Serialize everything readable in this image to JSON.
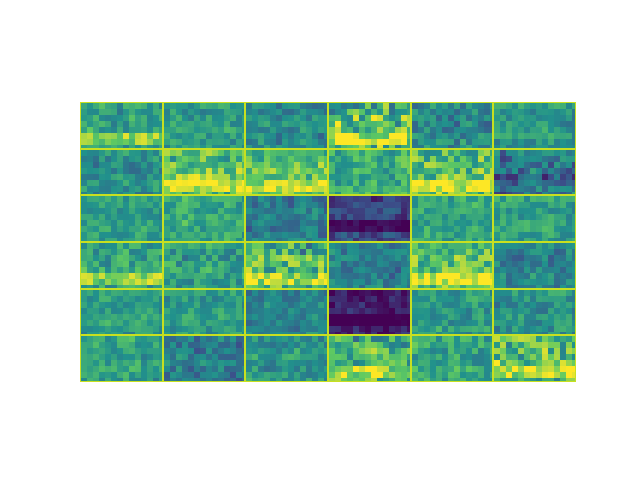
{
  "image": {
    "description_name": "feature-map-grid",
    "rows": 6,
    "cols": 6,
    "colormap": "viridis",
    "colormap_stops": [
      "#440154",
      "#3b528b",
      "#21918c",
      "#5ec962",
      "#fde725"
    ],
    "separator_color": "#c8e020",
    "cells": [
      [
        {
          "base": 0.58,
          "bright": "bottom",
          "contrast": 0.15
        },
        {
          "base": 0.55,
          "bright": "none",
          "contrast": 0.12
        },
        {
          "base": 0.48,
          "bright": "none",
          "contrast": 0.12
        },
        {
          "base": 0.7,
          "bright": "bottom",
          "contrast": 0.3
        },
        {
          "base": 0.45,
          "bright": "none",
          "contrast": 0.15
        },
        {
          "base": 0.52,
          "bright": "none",
          "contrast": 0.12
        }
      ],
      [
        {
          "base": 0.5,
          "bright": "none",
          "contrast": 0.12
        },
        {
          "base": 0.75,
          "bright": "bottom",
          "contrast": 0.2
        },
        {
          "base": 0.72,
          "bright": "bottom",
          "contrast": 0.18
        },
        {
          "base": 0.62,
          "bright": "none",
          "contrast": 0.15
        },
        {
          "base": 0.74,
          "bright": "bottom",
          "contrast": 0.22
        },
        {
          "base": 0.4,
          "bright": "dark",
          "contrast": 0.2
        }
      ],
      [
        {
          "base": 0.55,
          "bright": "none",
          "contrast": 0.1
        },
        {
          "base": 0.6,
          "bright": "none",
          "contrast": 0.12
        },
        {
          "base": 0.42,
          "bright": "none",
          "contrast": 0.12
        },
        {
          "base": 0.2,
          "bright": "dark",
          "contrast": 0.1
        },
        {
          "base": 0.58,
          "bright": "none",
          "contrast": 0.12
        },
        {
          "base": 0.56,
          "bright": "none",
          "contrast": 0.12
        }
      ],
      [
        {
          "base": 0.6,
          "bright": "bottom",
          "contrast": 0.15
        },
        {
          "base": 0.55,
          "bright": "none",
          "contrast": 0.14
        },
        {
          "base": 0.66,
          "bright": "bottom",
          "contrast": 0.25
        },
        {
          "base": 0.42,
          "bright": "none",
          "contrast": 0.12
        },
        {
          "base": 0.72,
          "bright": "bottom",
          "contrast": 0.2
        },
        {
          "base": 0.45,
          "bright": "none",
          "contrast": 0.12
        }
      ],
      [
        {
          "base": 0.55,
          "bright": "none",
          "contrast": 0.1
        },
        {
          "base": 0.55,
          "bright": "none",
          "contrast": 0.1
        },
        {
          "base": 0.45,
          "bright": "none",
          "contrast": 0.1
        },
        {
          "base": 0.08,
          "bright": "dark",
          "contrast": 0.1
        },
        {
          "base": 0.52,
          "bright": "none",
          "contrast": 0.12
        },
        {
          "base": 0.5,
          "bright": "none",
          "contrast": 0.12
        }
      ],
      [
        {
          "base": 0.56,
          "bright": "none",
          "contrast": 0.12
        },
        {
          "base": 0.42,
          "bright": "none",
          "contrast": 0.14
        },
        {
          "base": 0.52,
          "bright": "none",
          "contrast": 0.12
        },
        {
          "base": 0.66,
          "bright": "bottom",
          "contrast": 0.22
        },
        {
          "base": 0.58,
          "bright": "none",
          "contrast": 0.14
        },
        {
          "base": 0.72,
          "bright": "bottom",
          "contrast": 0.25
        }
      ]
    ]
  }
}
